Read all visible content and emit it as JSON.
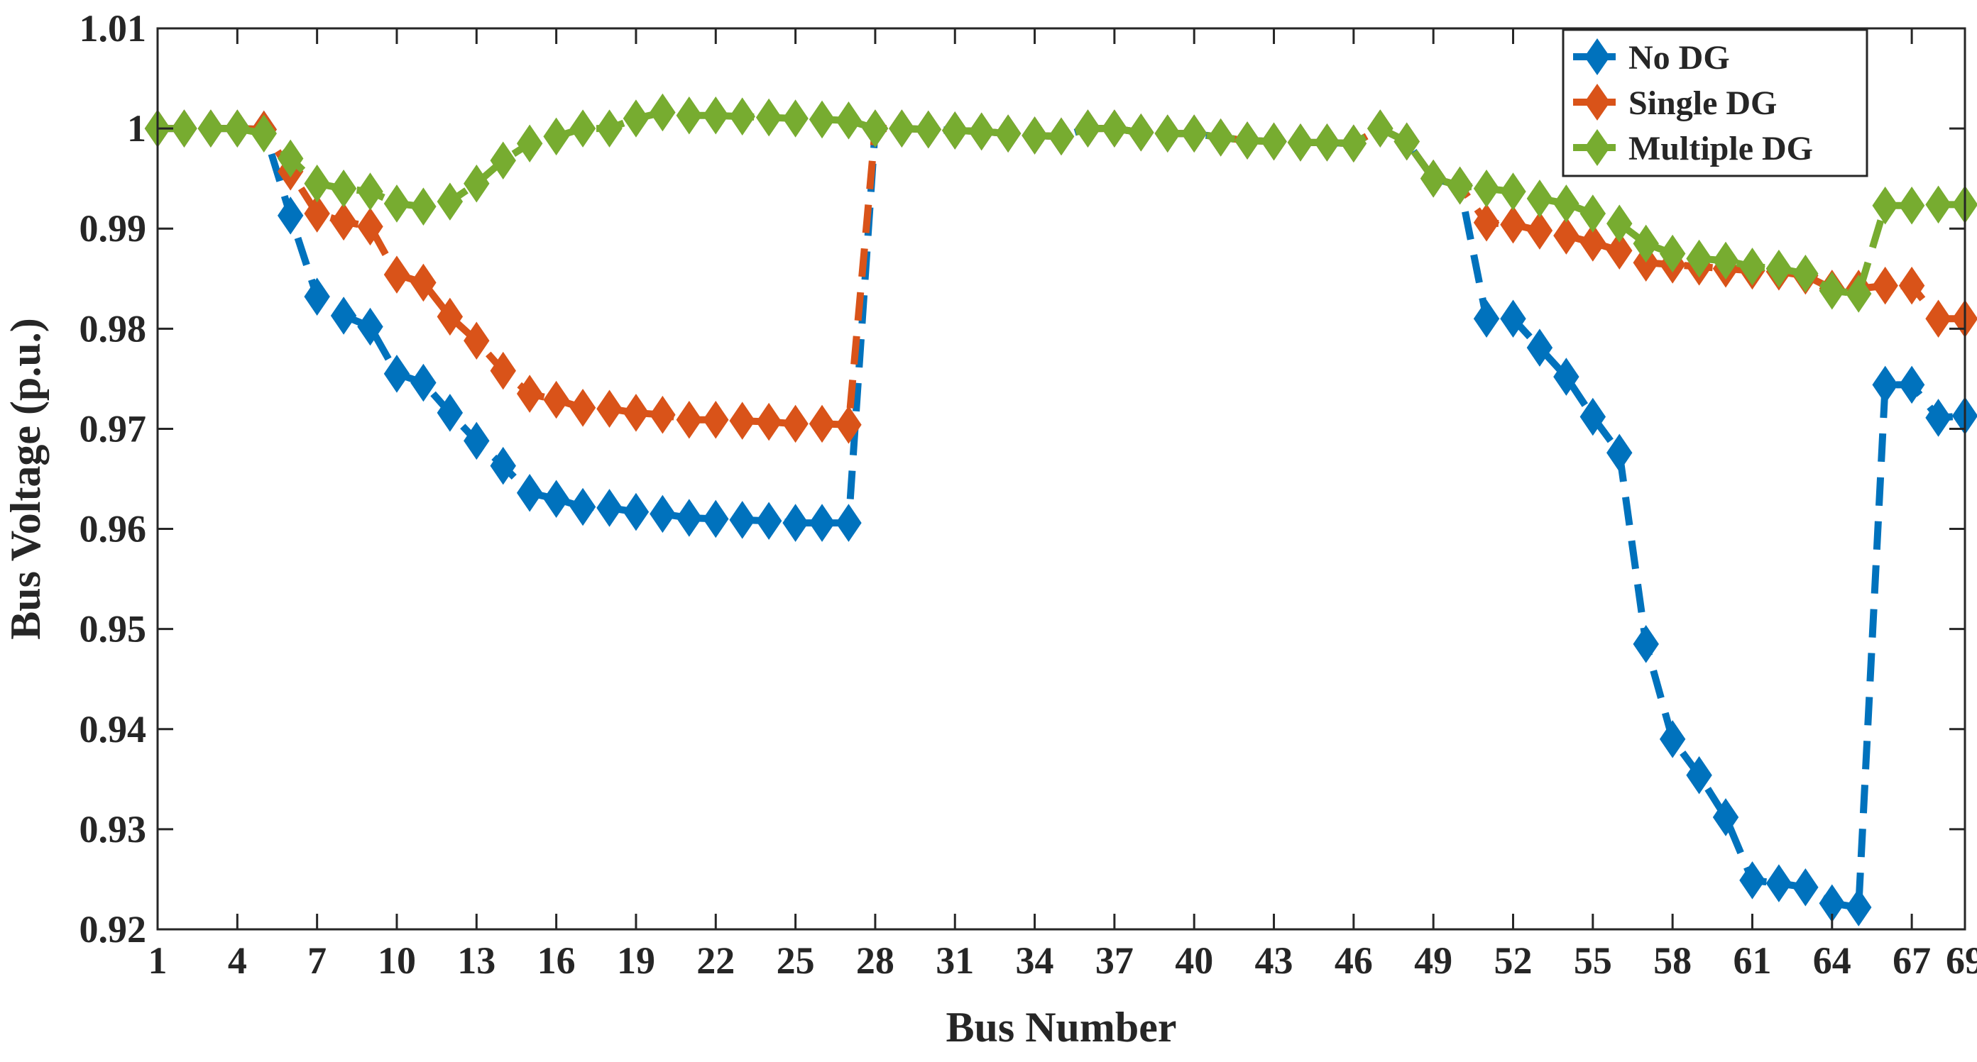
{
  "chart_data": {
    "type": "line",
    "title": "",
    "xlabel": "Bus Number",
    "ylabel": "Bus Voltage (p.u.)",
    "xlim": [
      1,
      69
    ],
    "ylim": [
      0.92,
      1.01
    ],
    "xticks": [
      1,
      4,
      7,
      10,
      13,
      16,
      19,
      22,
      25,
      28,
      31,
      34,
      37,
      40,
      43,
      46,
      49,
      52,
      55,
      58,
      61,
      64,
      67,
      69
    ],
    "xtick_labels": [
      "1",
      "4",
      "7",
      "10",
      "13",
      "16",
      "19",
      "22",
      "25",
      "28",
      "31",
      "34",
      "37",
      "40",
      "43",
      "46",
      "49",
      "52",
      "55",
      "58",
      "61",
      "64",
      "67",
      "69"
    ],
    "yticks": [
      0.92,
      0.93,
      0.94,
      0.95,
      0.96,
      0.97,
      0.98,
      0.99,
      1,
      1.01
    ],
    "ytick_labels": [
      "0.92",
      "0.93",
      "0.94",
      "0.95",
      "0.96",
      "0.97",
      "0.98",
      "0.99",
      "1",
      "1.01"
    ],
    "grid": false,
    "legend_position": "top-right",
    "marker": "diamond",
    "line_style": "dashed",
    "x": [
      1,
      2,
      3,
      4,
      5,
      6,
      7,
      8,
      9,
      10,
      11,
      12,
      13,
      14,
      15,
      16,
      17,
      18,
      19,
      20,
      21,
      22,
      23,
      24,
      25,
      26,
      27,
      28,
      29,
      30,
      31,
      32,
      33,
      34,
      35,
      36,
      37,
      38,
      39,
      40,
      41,
      42,
      43,
      44,
      45,
      46,
      47,
      48,
      49,
      50,
      51,
      52,
      53,
      54,
      55,
      56,
      57,
      58,
      59,
      60,
      61,
      62,
      63,
      64,
      65,
      66,
      67,
      68,
      69
    ],
    "series": [
      {
        "name": "No DG",
        "color": "#0072BD",
        "values": [
          1.0,
          1.0,
          1.0,
          1.0,
          0.9999,
          0.9913,
          0.9832,
          0.9813,
          0.9802,
          0.9755,
          0.9746,
          0.9716,
          0.9688,
          0.9663,
          0.9636,
          0.963,
          0.9622,
          0.9621,
          0.9617,
          0.9615,
          0.9611,
          0.961,
          0.9609,
          0.9608,
          0.9606,
          0.9606,
          0.9606,
          1.0,
          1.0,
          0.9999,
          0.9998,
          0.9997,
          0.9995,
          0.9993,
          0.9992,
          1.0,
          1.0,
          0.9996,
          0.9995,
          0.9995,
          0.9991,
          0.9988,
          0.9987,
          0.9986,
          0.9986,
          0.9985,
          1.0,
          0.9987,
          0.995,
          0.9943,
          0.981,
          0.981,
          0.9781,
          0.9752,
          0.9712,
          0.9676,
          0.9485,
          0.939,
          0.9354,
          0.9312,
          0.9249,
          0.9246,
          0.9242,
          0.9226,
          0.9222,
          0.9744,
          0.9744,
          0.9711,
          0.9713
        ]
      },
      {
        "name": "Single DG",
        "color": "#D95319",
        "values": [
          1.0,
          1.0,
          1.0,
          1.0,
          0.9999,
          0.9957,
          0.9915,
          0.9907,
          0.9902,
          0.9854,
          0.9846,
          0.9812,
          0.9788,
          0.9758,
          0.9735,
          0.9729,
          0.9721,
          0.972,
          0.9716,
          0.9714,
          0.9709,
          0.9709,
          0.9708,
          0.9707,
          0.9705,
          0.9705,
          0.9704,
          1.0,
          1.0,
          0.9999,
          0.9998,
          0.9997,
          0.9995,
          0.9993,
          0.9992,
          1.0,
          1.0,
          0.9996,
          0.9995,
          0.9995,
          0.9991,
          0.9988,
          0.9987,
          0.9986,
          0.9986,
          0.9985,
          1.0,
          0.9987,
          0.995,
          0.9943,
          0.9906,
          0.9904,
          0.9898,
          0.9893,
          0.9886,
          0.9878,
          0.9866,
          0.9864,
          0.9862,
          0.986,
          0.9858,
          0.9857,
          0.9853,
          0.984,
          0.984,
          0.9843,
          0.9843,
          0.981,
          0.981
        ]
      },
      {
        "name": "Multiple DG",
        "color": "#77AC30",
        "values": [
          1.0,
          1.0,
          1.0,
          1.0,
          0.9995,
          0.997,
          0.9945,
          0.994,
          0.9937,
          0.9925,
          0.9922,
          0.9927,
          0.9945,
          0.9968,
          0.9985,
          0.9992,
          1.0,
          1.0,
          1.001,
          1.0016,
          1.0013,
          1.0013,
          1.0012,
          1.0011,
          1.001,
          1.0009,
          1.0008,
          1.0,
          1.0,
          0.9999,
          0.9998,
          0.9997,
          0.9995,
          0.9993,
          0.9992,
          1.0,
          1.0,
          0.9996,
          0.9995,
          0.9995,
          0.9991,
          0.9988,
          0.9987,
          0.9986,
          0.9986,
          0.9985,
          1.0,
          0.9987,
          0.995,
          0.9943,
          0.994,
          0.9937,
          0.993,
          0.9925,
          0.9915,
          0.9905,
          0.9885,
          0.9875,
          0.987,
          0.9868,
          0.9862,
          0.986,
          0.9855,
          0.9838,
          0.9835,
          0.9923,
          0.9923,
          0.9924,
          0.9924
        ]
      }
    ]
  }
}
